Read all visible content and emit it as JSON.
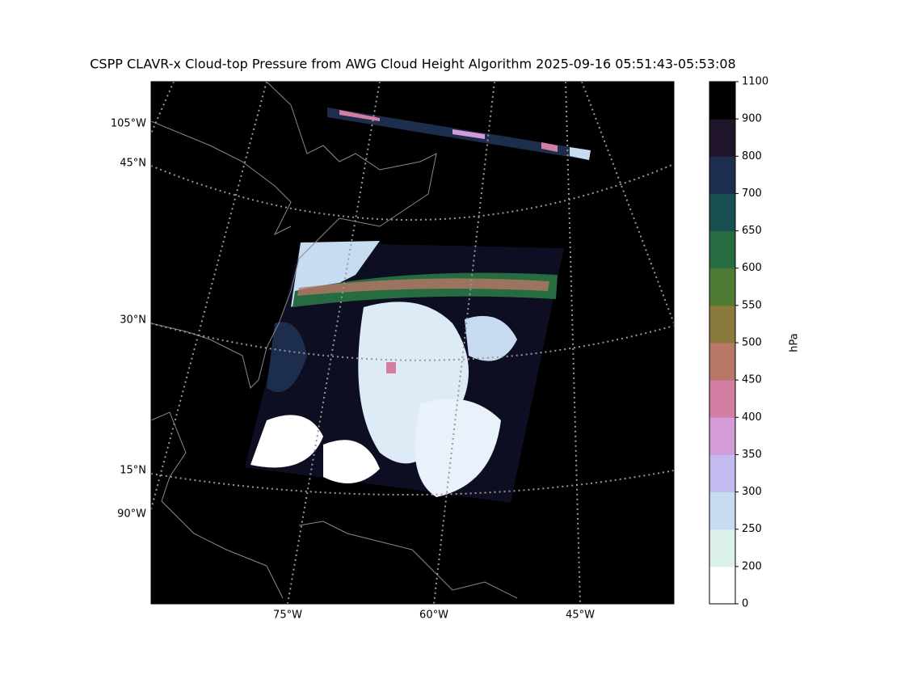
{
  "map": {
    "title": "CSPP CLAVR-x Cloud-top Pressure from AWG Cloud Height Algorithm 2025-09-16 05:51:43-05:53:08",
    "left_labels": [
      "105°W",
      "45°N",
      "30°N",
      "15°N",
      "90°W"
    ],
    "bottom_labels": [
      "75°W",
      "60°W",
      "45°W"
    ],
    "colorbar": {
      "label": "hPa",
      "ticks": [
        0,
        200,
        250,
        300,
        350,
        400,
        450,
        500,
        550,
        600,
        650,
        700,
        800,
        900,
        1100
      ],
      "colors": [
        "#ffffff",
        "#dcf1ec",
        "#c7dcf1",
        "#c4bbf0",
        "#d39bd8",
        "#d47ea3",
        "#b97767",
        "#8a7a3b",
        "#4f7b33",
        "#276b41",
        "#184f51",
        "#1c2d4d",
        "#1f1429",
        "#000000"
      ]
    }
  }
}
